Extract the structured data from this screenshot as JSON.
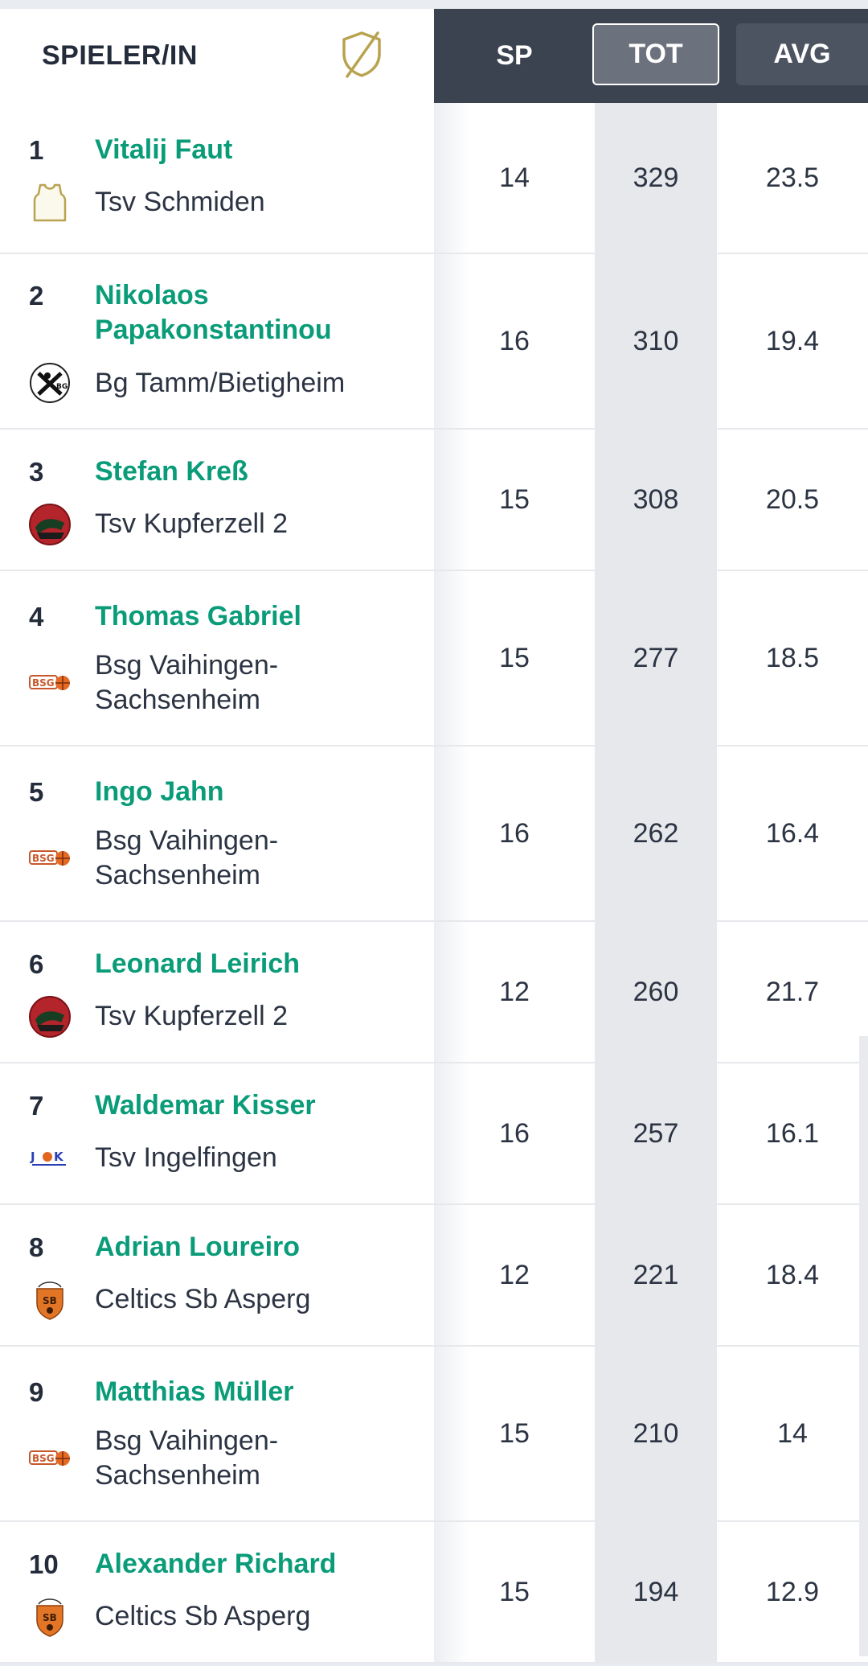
{
  "header": {
    "player_col": "SPIELER/IN",
    "sp": "SP",
    "tot": "TOT",
    "avg": "AVG",
    "shield_icon": "shield-slash-icon"
  },
  "colors": {
    "header_bg": "#3b4250",
    "name_green": "#0a9c79",
    "accent_gold": "#b9a351"
  },
  "rows": [
    {
      "rank": "1",
      "name": "Vitalij Faut",
      "team": "Tsv Schmiden",
      "logo": "jersey-icon",
      "sp": "14",
      "tot": "329",
      "avg": "23.5"
    },
    {
      "rank": "2",
      "name": "Nikolaos Papakonstantinou",
      "team": "Bg Tamm/Bietigheim",
      "logo": "bg-tamm-logo",
      "sp": "16",
      "tot": "310",
      "avg": "19.4"
    },
    {
      "rank": "3",
      "name": "Stefan Kreß",
      "team": "Tsv Kupferzell 2",
      "logo": "kupferzell-logo",
      "sp": "15",
      "tot": "308",
      "avg": "20.5"
    },
    {
      "rank": "4",
      "name": "Thomas Gabriel",
      "team": "Bsg Vaihingen-Sachsenheim",
      "logo": "bsg-logo",
      "sp": "15",
      "tot": "277",
      "avg": "18.5"
    },
    {
      "rank": "5",
      "name": "Ingo Jahn",
      "team": "Bsg Vaihingen-Sachsenheim",
      "logo": "bsg-logo",
      "sp": "16",
      "tot": "262",
      "avg": "16.4"
    },
    {
      "rank": "6",
      "name": "Leonard Leirich",
      "team": "Tsv Kupferzell 2",
      "logo": "kupferzell-logo",
      "sp": "12",
      "tot": "260",
      "avg": "21.7"
    },
    {
      "rank": "7",
      "name": "Waldemar Kisser",
      "team": "Tsv Ingelfingen",
      "logo": "ingelfingen-logo",
      "sp": "16",
      "tot": "257",
      "avg": "16.1"
    },
    {
      "rank": "8",
      "name": "Adrian Loureiro",
      "team": "Celtics Sb Asperg",
      "logo": "asperg-logo",
      "sp": "12",
      "tot": "221",
      "avg": "18.4"
    },
    {
      "rank": "9",
      "name": "Matthias Müller",
      "team": "Bsg Vaihingen-Sachsenheim",
      "logo": "bsg-logo",
      "sp": "15",
      "tot": "210",
      "avg": "14"
    },
    {
      "rank": "10",
      "name": "Alexander Richard",
      "team": "Celtics Sb Asperg",
      "logo": "asperg-logo",
      "sp": "15",
      "tot": "194",
      "avg": "12.9"
    }
  ]
}
